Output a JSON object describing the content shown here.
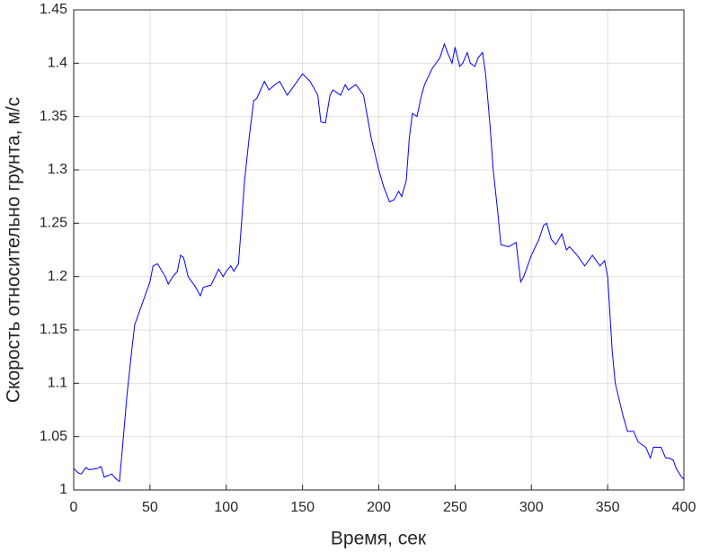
{
  "chart_data": {
    "type": "line",
    "x_label": "Время, сек",
    "y_label": "Скорость относительно грунта, м/с",
    "x": [
      0,
      3,
      5,
      8,
      10,
      15,
      18,
      20,
      25,
      28,
      30,
      32,
      35,
      38,
      40,
      45,
      50,
      52,
      55,
      60,
      62,
      65,
      68,
      70,
      72,
      75,
      80,
      83,
      85,
      90,
      95,
      98,
      100,
      103,
      105,
      108,
      110,
      112,
      115,
      118,
      120,
      125,
      128,
      132,
      135,
      140,
      145,
      150,
      155,
      160,
      162,
      165,
      168,
      170,
      175,
      178,
      180,
      185,
      190,
      195,
      200,
      203,
      207,
      210,
      213,
      215,
      218,
      220,
      222,
      225,
      228,
      230,
      235,
      240,
      243,
      245,
      248,
      250,
      253,
      255,
      258,
      260,
      263,
      265,
      268,
      270,
      273,
      275,
      278,
      280,
      285,
      290,
      293,
      295,
      300,
      305,
      308,
      310,
      313,
      316,
      320,
      323,
      325,
      330,
      335,
      340,
      345,
      348,
      350,
      353,
      355,
      360,
      363,
      367,
      370,
      375,
      378,
      380,
      385,
      388,
      390,
      393,
      395,
      398,
      400
    ],
    "series": [
      {
        "color": "#0000ff",
        "values": [
          1.02,
          1.016,
          1.015,
          1.021,
          1.019,
          1.02,
          1.022,
          1.012,
          1.015,
          1.01,
          1.008,
          1.04,
          1.09,
          1.13,
          1.155,
          1.175,
          1.195,
          1.21,
          1.212,
          1.2,
          1.193,
          1.2,
          1.205,
          1.22,
          1.218,
          1.2,
          1.19,
          1.182,
          1.19,
          1.192,
          1.207,
          1.2,
          1.205,
          1.21,
          1.205,
          1.212,
          1.25,
          1.29,
          1.33,
          1.365,
          1.367,
          1.383,
          1.375,
          1.38,
          1.383,
          1.37,
          1.38,
          1.39,
          1.383,
          1.37,
          1.345,
          1.344,
          1.37,
          1.375,
          1.37,
          1.38,
          1.375,
          1.38,
          1.37,
          1.33,
          1.3,
          1.285,
          1.27,
          1.272,
          1.28,
          1.275,
          1.29,
          1.33,
          1.353,
          1.35,
          1.37,
          1.38,
          1.395,
          1.405,
          1.418,
          1.41,
          1.4,
          1.415,
          1.397,
          1.4,
          1.41,
          1.4,
          1.397,
          1.405,
          1.41,
          1.39,
          1.34,
          1.3,
          1.26,
          1.23,
          1.228,
          1.232,
          1.195,
          1.2,
          1.22,
          1.235,
          1.248,
          1.25,
          1.235,
          1.23,
          1.24,
          1.225,
          1.228,
          1.22,
          1.21,
          1.22,
          1.21,
          1.215,
          1.2,
          1.13,
          1.1,
          1.07,
          1.055,
          1.055,
          1.045,
          1.04,
          1.03,
          1.04,
          1.04,
          1.03,
          1.03,
          1.028,
          1.02,
          1.013,
          1.01
        ]
      }
    ],
    "xlim": [
      0,
      400
    ],
    "xticks": [
      0,
      50,
      100,
      150,
      200,
      250,
      300,
      350,
      400
    ],
    "ylim": [
      1,
      1.45
    ],
    "yticks": [
      1,
      1.05,
      1.1,
      1.15,
      1.2,
      1.25,
      1.3,
      1.35,
      1.4,
      1.45
    ],
    "grid": true
  }
}
